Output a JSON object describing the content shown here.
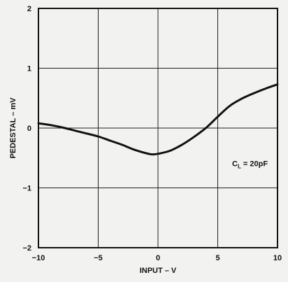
{
  "chart_data": {
    "type": "line",
    "xlabel": "INPUT – V",
    "ylabel": "PEDESTAL – mV",
    "xlim": [
      -10,
      10
    ],
    "ylim": [
      -2,
      2
    ],
    "x_ticks": [
      -10,
      -5,
      0,
      5,
      10
    ],
    "y_ticks": [
      -2,
      -1,
      0,
      1,
      2
    ],
    "x_tick_labels": [
      "−10",
      "−5",
      "0",
      "5",
      "10"
    ],
    "y_tick_labels": [
      "−2",
      "−1",
      "0",
      "1",
      "2"
    ],
    "grid": true,
    "series": [
      {
        "x": [
          -10,
          -9,
          -8,
          -7,
          -6,
          -5,
          -4,
          -3,
          -2,
          -1,
          -0.5,
          0,
          1,
          2,
          3,
          4,
          5,
          6,
          7,
          8,
          9,
          10
        ],
        "y": [
          0.08,
          0.05,
          0.01,
          -0.04,
          -0.09,
          -0.14,
          -0.21,
          -0.28,
          -0.36,
          -0.42,
          -0.44,
          -0.43,
          -0.38,
          -0.28,
          -0.15,
          0.0,
          0.19,
          0.37,
          0.49,
          0.58,
          0.66,
          0.73
        ]
      }
    ],
    "annotation": {
      "main": "C",
      "sub": "L",
      "rest": " = 20pF"
    }
  }
}
